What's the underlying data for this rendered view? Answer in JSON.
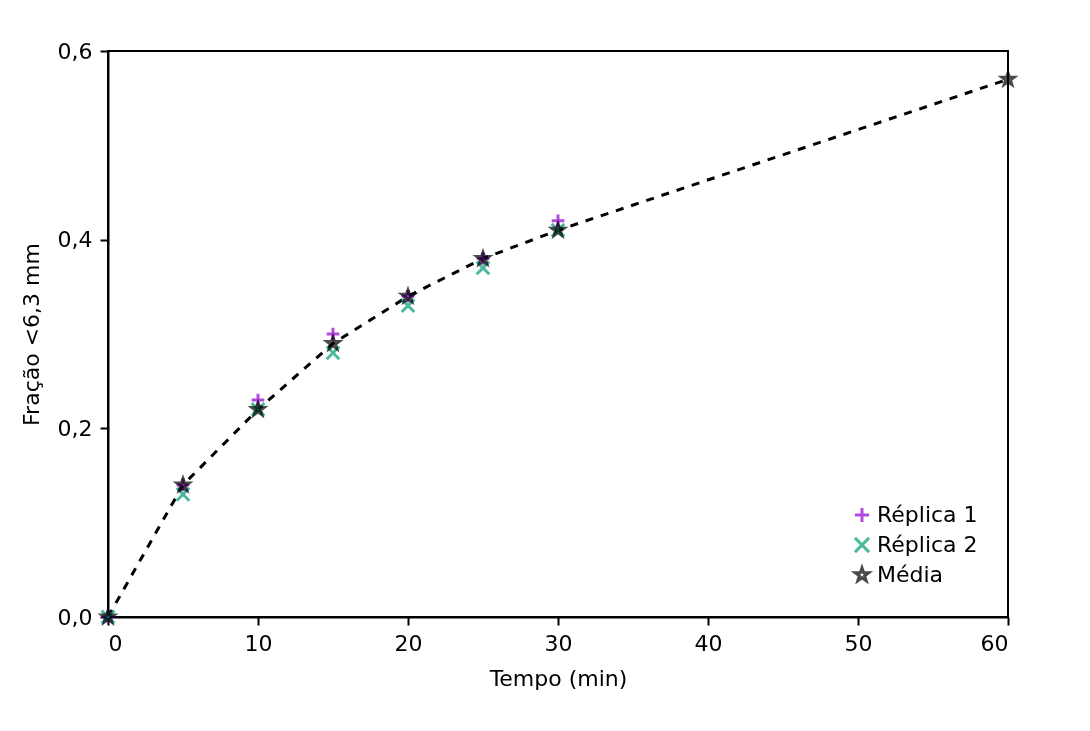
{
  "chart_data": {
    "type": "scatter",
    "xlabel": "Tempo (min)",
    "ylabel": "Fração <6,3 mm",
    "xlim": [
      0,
      60
    ],
    "xticks": [
      0,
      10,
      20,
      30,
      40,
      50,
      60
    ],
    "ylim": [
      0,
      0.6
    ],
    "yticks": [
      {
        "value": 0,
        "label": "0,0"
      },
      {
        "value": 0.2,
        "label": "0,2"
      },
      {
        "value": 0.4,
        "label": "0,4"
      },
      {
        "value": 0.6,
        "label": "0,6"
      }
    ],
    "grid": false,
    "legend": "bottom right",
    "series": [
      {
        "name": "Réplica 1",
        "marker": "plus",
        "color": "#9400d3",
        "x": [
          0,
          5,
          10,
          15,
          20,
          25,
          30
        ],
        "values": [
          0,
          0.14,
          0.23,
          0.3,
          0.34,
          0.38,
          0.42
        ]
      },
      {
        "name": "Réplica 2",
        "marker": "cross",
        "color": "#009e73",
        "x": [
          0,
          5,
          10,
          15,
          20,
          25,
          30
        ],
        "values": [
          0,
          0.13,
          0.22,
          0.28,
          0.33,
          0.37,
          0.41
        ]
      },
      {
        "name": "Média",
        "type": "line",
        "marker": "star",
        "line_style": "dashed",
        "color": "#000000",
        "x": [
          0,
          5,
          10,
          15,
          20,
          25,
          30,
          60
        ],
        "values": [
          0,
          0.14,
          0.22,
          0.29,
          0.34,
          0.38,
          0.41,
          0.57
        ]
      }
    ]
  }
}
